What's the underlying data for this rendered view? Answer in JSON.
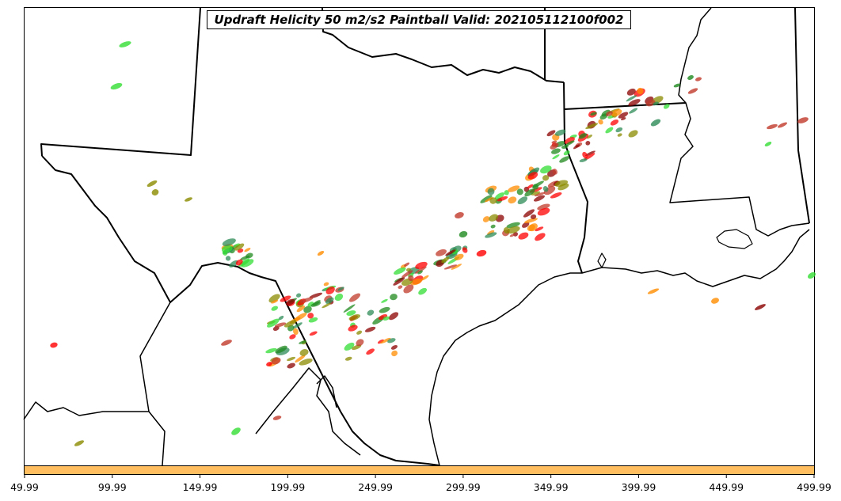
{
  "title": "Updraft Helicity 50 m2/s2 Paintball Valid: 202105112100f002",
  "colorbar": {
    "color": "#ffbf60",
    "tick_labels": [
      "49.99",
      "99.99",
      "149.99",
      "199.99",
      "249.99",
      "299.99",
      "349.99",
      "399.99",
      "449.99",
      "499.99"
    ],
    "range": [
      49.99,
      499.99
    ]
  },
  "colors": {
    "boundaries": "#000000",
    "member_colors": [
      "#ff0000",
      "#ff8c00",
      "#1f8a1f",
      "#33dd33",
      "#8b8b00",
      "#c0392b",
      "#2e8b57",
      "#8b0000"
    ]
  }
}
